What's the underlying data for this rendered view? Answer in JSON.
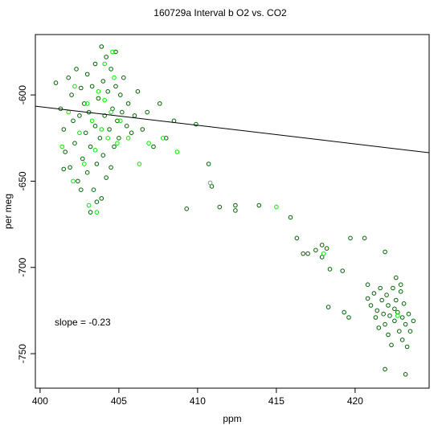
{
  "chart_data": {
    "type": "scatter",
    "title": "160729a   Interval b O2 vs. CO2",
    "xlabel": "ppm",
    "ylabel": "per meg",
    "xlim": [
      399.7,
      424.7
    ],
    "ylim": [
      -770,
      -565
    ],
    "x_ticks": [
      400,
      405,
      410,
      415,
      420
    ],
    "y_ticks": [
      -600,
      -650,
      -700,
      -750
    ],
    "grid": false,
    "legend": "none",
    "colors": {
      "dark_points": "#006400",
      "bright_points": "#00ee00",
      "line": "#000000"
    },
    "regression_line": {
      "x": [
        399.7,
        424.7
      ],
      "y": [
        -606.5,
        -633.5
      ]
    },
    "annotation": "slope =  -0.23",
    "series": [
      {
        "color": "#006400",
        "points": [
          [
            401.0,
            -593
          ],
          [
            401.3,
            -608
          ],
          [
            401.5,
            -620
          ],
          [
            401.6,
            -633
          ],
          [
            401.8,
            -590
          ],
          [
            401.9,
            -642
          ],
          [
            402.0,
            -600
          ],
          [
            402.1,
            -615
          ],
          [
            402.2,
            -628
          ],
          [
            402.3,
            -585
          ],
          [
            402.4,
            -650
          ],
          [
            402.5,
            -612
          ],
          [
            402.6,
            -596
          ],
          [
            402.7,
            -637
          ],
          [
            402.8,
            -605
          ],
          [
            402.9,
            -622
          ],
          [
            403.0,
            -588
          ],
          [
            403.0,
            -645
          ],
          [
            403.1,
            -610
          ],
          [
            403.2,
            -630
          ],
          [
            403.3,
            -595
          ],
          [
            403.4,
            -655
          ],
          [
            403.5,
            -618
          ],
          [
            403.5,
            -582
          ],
          [
            403.6,
            -640
          ],
          [
            403.7,
            -602
          ],
          [
            403.8,
            -625
          ],
          [
            403.9,
            -660
          ],
          [
            404.0,
            -592
          ],
          [
            404.0,
            -635
          ],
          [
            404.1,
            -612
          ],
          [
            404.2,
            -648
          ],
          [
            404.3,
            -598
          ],
          [
            404.4,
            -620
          ],
          [
            404.5,
            -585
          ],
          [
            404.5,
            -642
          ],
          [
            404.6,
            -608
          ],
          [
            404.7,
            -630
          ],
          [
            404.8,
            -595
          ],
          [
            404.9,
            -615
          ],
          [
            405.0,
            -625
          ],
          [
            405.1,
            -600
          ],
          [
            405.2,
            -610
          ],
          [
            405.3,
            -590
          ],
          [
            405.5,
            -618
          ],
          [
            405.6,
            -605
          ],
          [
            405.8,
            -622
          ],
          [
            406.0,
            -612
          ],
          [
            406.2,
            -598
          ],
          [
            406.5,
            -620
          ],
          [
            406.8,
            -610
          ],
          [
            407.2,
            -630
          ],
          [
            407.6,
            -605
          ],
          [
            408.0,
            -625
          ],
          [
            408.5,
            -615
          ],
          [
            403.2,
            -668
          ],
          [
            403.6,
            -662
          ],
          [
            402.6,
            -655
          ],
          [
            401.5,
            -643
          ],
          [
            404.8,
            -575
          ],
          [
            404.2,
            -578
          ],
          [
            403.9,
            -572
          ],
          [
            409.3,
            -666
          ],
          [
            409.9,
            -617
          ],
          [
            410.7,
            -640
          ],
          [
            410.9,
            -653
          ],
          [
            411.4,
            -665
          ],
          [
            412.4,
            -667
          ],
          [
            412.4,
            -664
          ],
          [
            413.9,
            -664
          ],
          [
            415.9,
            -671
          ],
          [
            416.3,
            -683
          ],
          [
            416.7,
            -692
          ],
          [
            417.0,
            -692
          ],
          [
            417.5,
            -690
          ],
          [
            417.9,
            -694
          ],
          [
            417.9,
            -687
          ],
          [
            418.2,
            -689
          ],
          [
            418.4,
            -701
          ],
          [
            419.2,
            -702
          ],
          [
            419.7,
            -683
          ],
          [
            420.6,
            -683
          ],
          [
            421.9,
            -691
          ],
          [
            418.3,
            -723
          ],
          [
            419.3,
            -726
          ],
          [
            419.6,
            -729
          ],
          [
            420.8,
            -710
          ],
          [
            420.8,
            -718
          ],
          [
            421.0,
            -722
          ],
          [
            421.2,
            -715
          ],
          [
            421.3,
            -729
          ],
          [
            421.4,
            -725
          ],
          [
            421.5,
            -735
          ],
          [
            421.6,
            -712
          ],
          [
            421.7,
            -719
          ],
          [
            421.8,
            -727
          ],
          [
            421.9,
            -733
          ],
          [
            422.0,
            -716
          ],
          [
            422.1,
            -722
          ],
          [
            422.1,
            -739
          ],
          [
            422.2,
            -728
          ],
          [
            422.3,
            -745
          ],
          [
            422.4,
            -712
          ],
          [
            422.5,
            -724
          ],
          [
            422.5,
            -731
          ],
          [
            422.6,
            -719
          ],
          [
            422.7,
            -726
          ],
          [
            422.8,
            -737
          ],
          [
            422.9,
            -714
          ],
          [
            423.0,
            -729
          ],
          [
            423.0,
            -742
          ],
          [
            423.1,
            -721
          ],
          [
            423.2,
            -733
          ],
          [
            423.3,
            -746
          ],
          [
            423.4,
            -727
          ],
          [
            423.5,
            -737
          ],
          [
            423.7,
            -731
          ],
          [
            421.9,
            -759
          ],
          [
            423.2,
            -762
          ],
          [
            422.6,
            -706
          ],
          [
            422.9,
            -710
          ]
        ]
      },
      {
        "color": "#00ee00",
        "points": [
          [
            401.4,
            -630
          ],
          [
            401.8,
            -610
          ],
          [
            402.2,
            -595
          ],
          [
            402.5,
            -622
          ],
          [
            402.8,
            -640
          ],
          [
            403.0,
            -605
          ],
          [
            403.3,
            -615
          ],
          [
            403.5,
            -632
          ],
          [
            403.7,
            -598
          ],
          [
            403.9,
            -620
          ],
          [
            404.1,
            -603
          ],
          [
            404.3,
            -625
          ],
          [
            404.5,
            -610
          ],
          [
            404.7,
            -590
          ],
          [
            404.9,
            -628
          ],
          [
            405.1,
            -615
          ],
          [
            403.6,
            -668
          ],
          [
            403.1,
            -664
          ],
          [
            405.6,
            -625
          ],
          [
            406.3,
            -640
          ],
          [
            406.9,
            -628
          ],
          [
            407.8,
            -625
          ],
          [
            408.7,
            -633
          ],
          [
            404.1,
            -582
          ],
          [
            404.6,
            -575
          ],
          [
            402.1,
            -650
          ],
          [
            410.8,
            -651
          ],
          [
            415.0,
            -665
          ],
          [
            418.0,
            -692
          ],
          [
            422.7,
            -728
          ]
        ]
      }
    ]
  }
}
